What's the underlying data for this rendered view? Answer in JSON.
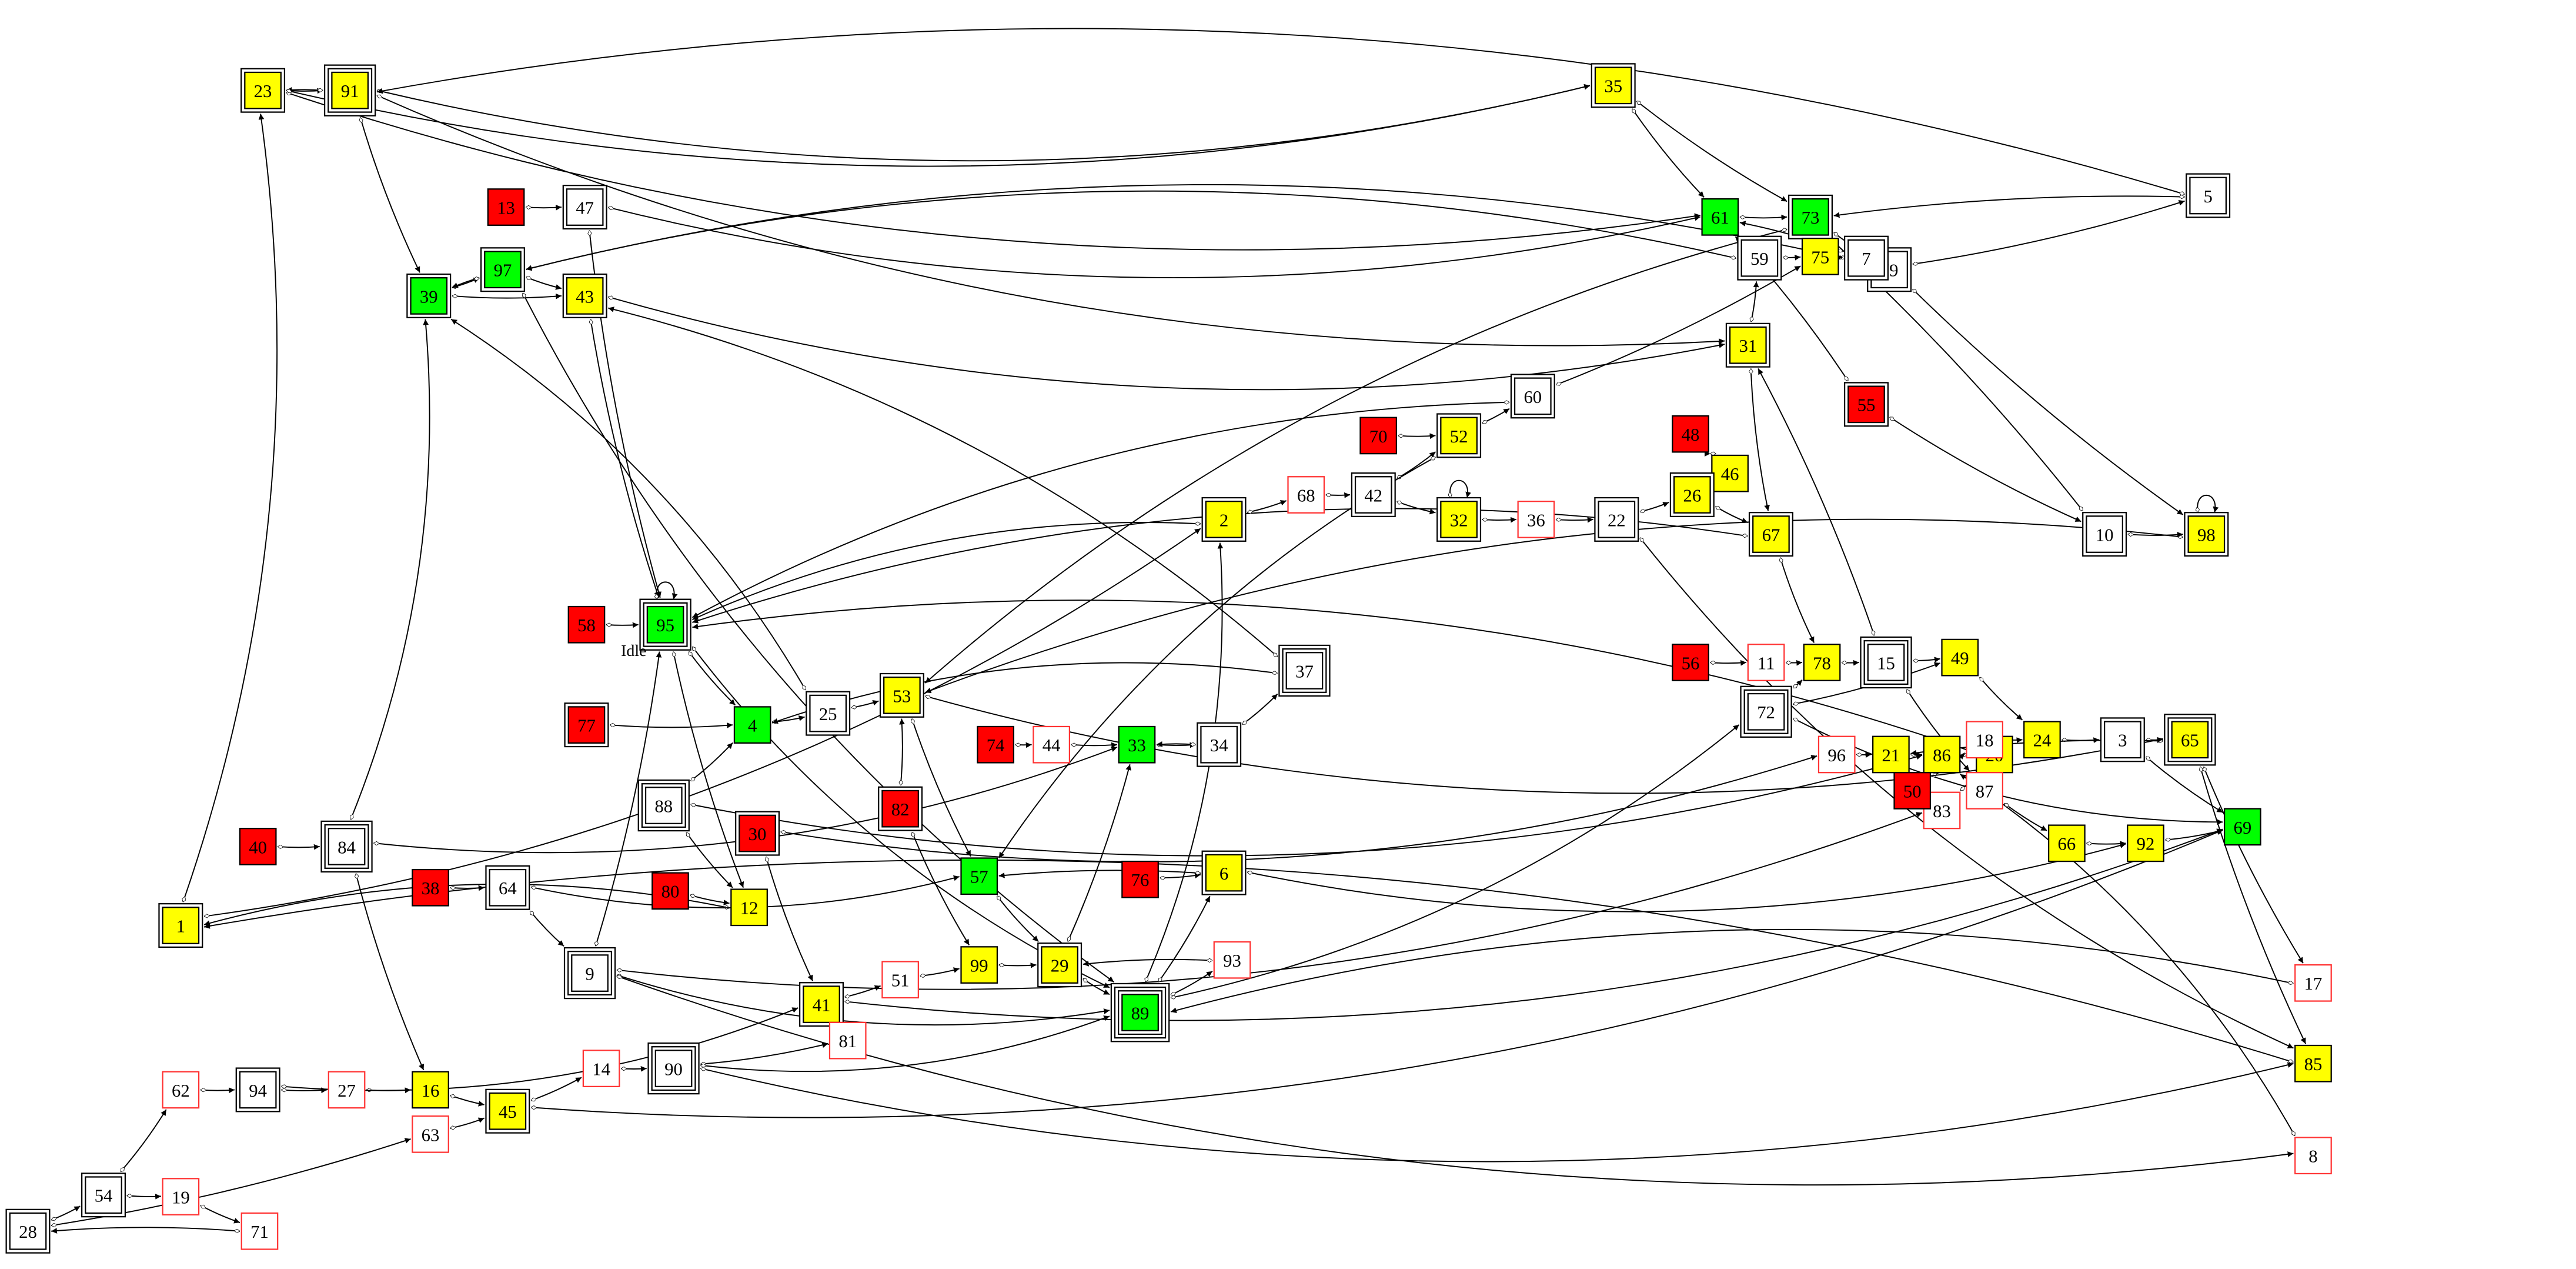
{
  "graph": {
    "colors": {
      "yellow": "#ffff00",
      "green": "#00ff00",
      "red": "#ff0000",
      "white": "#ffffff",
      "red_outline": "#ff3333"
    },
    "annotation": "Idle",
    "nodes": [
      {
        "id": "23",
        "fill": "yellow",
        "peripheries": 2
      },
      {
        "id": "91",
        "fill": "yellow",
        "peripheries": 3
      },
      {
        "id": "35",
        "fill": "yellow",
        "peripheries": 2
      },
      {
        "id": "13",
        "fill": "red",
        "peripheries": 1
      },
      {
        "id": "47",
        "fill": "white",
        "peripheries": 2
      },
      {
        "id": "61",
        "fill": "green",
        "peripheries": 1
      },
      {
        "id": "73",
        "fill": "green",
        "peripheries": 2
      },
      {
        "id": "5",
        "fill": "white",
        "peripheries": 2
      },
      {
        "id": "79",
        "fill": "white",
        "peripheries": 2
      },
      {
        "id": "59",
        "fill": "white",
        "peripheries": 2
      },
      {
        "id": "75",
        "fill": "yellow",
        "peripheries": 1
      },
      {
        "id": "7",
        "fill": "white",
        "peripheries": 2
      },
      {
        "id": "39",
        "fill": "green",
        "peripheries": 2
      },
      {
        "id": "97",
        "fill": "green",
        "peripheries": 2
      },
      {
        "id": "43",
        "fill": "yellow",
        "peripheries": 2
      },
      {
        "id": "31",
        "fill": "yellow",
        "peripheries": 2
      },
      {
        "id": "55",
        "fill": "red",
        "peripheries": 2
      },
      {
        "id": "60",
        "fill": "white",
        "peripheries": 2
      },
      {
        "id": "70",
        "fill": "red",
        "peripheries": 1
      },
      {
        "id": "52",
        "fill": "yellow",
        "peripheries": 2
      },
      {
        "id": "48",
        "fill": "red",
        "peripheries": 1
      },
      {
        "id": "46",
        "fill": "yellow",
        "peripheries": 1
      },
      {
        "id": "68",
        "fill": "white",
        "peripheries": 1,
        "outline": "red"
      },
      {
        "id": "42",
        "fill": "white",
        "peripheries": 2
      },
      {
        "id": "32",
        "fill": "yellow",
        "peripheries": 2
      },
      {
        "id": "36",
        "fill": "white",
        "peripheries": 1,
        "outline": "red"
      },
      {
        "id": "22",
        "fill": "white",
        "peripheries": 2
      },
      {
        "id": "26",
        "fill": "yellow",
        "peripheries": 2
      },
      {
        "id": "67",
        "fill": "yellow",
        "peripheries": 2
      },
      {
        "id": "10",
        "fill": "white",
        "peripheries": 2
      },
      {
        "id": "98",
        "fill": "yellow",
        "peripheries": 2
      },
      {
        "id": "2",
        "fill": "yellow",
        "peripheries": 2
      },
      {
        "id": "58",
        "fill": "red",
        "peripheries": 1
      },
      {
        "id": "95",
        "fill": "green",
        "peripheries": 3
      },
      {
        "id": "96",
        "fill": "white",
        "peripheries": 1,
        "outline": "red"
      },
      {
        "id": "21",
        "fill": "yellow",
        "peripheries": 1
      },
      {
        "id": "86",
        "fill": "yellow",
        "peripheries": 1
      },
      {
        "id": "20",
        "fill": "yellow",
        "peripheries": 1
      },
      {
        "id": "83",
        "fill": "white",
        "peripheries": 1,
        "outline": "red"
      },
      {
        "id": "53",
        "fill": "yellow",
        "peripheries": 2
      },
      {
        "id": "37",
        "fill": "white",
        "peripheries": 3
      },
      {
        "id": "11",
        "fill": "white",
        "peripheries": 1,
        "outline": "red"
      },
      {
        "id": "78",
        "fill": "yellow",
        "peripheries": 1
      },
      {
        "id": "15",
        "fill": "white",
        "peripheries": 3
      },
      {
        "id": "49",
        "fill": "yellow",
        "peripheries": 1
      },
      {
        "id": "56",
        "fill": "red",
        "peripheries": 1
      },
      {
        "id": "72",
        "fill": "white",
        "peripheries": 3
      },
      {
        "id": "18",
        "fill": "white",
        "peripheries": 1,
        "outline": "red"
      },
      {
        "id": "24",
        "fill": "yellow",
        "peripheries": 1
      },
      {
        "id": "3",
        "fill": "white",
        "peripheries": 2
      },
      {
        "id": "65",
        "fill": "yellow",
        "peripheries": 3
      },
      {
        "id": "87",
        "fill": "white",
        "peripheries": 1,
        "outline": "red"
      },
      {
        "id": "50",
        "fill": "red",
        "peripheries": 1
      },
      {
        "id": "77",
        "fill": "red",
        "peripheries": 2
      },
      {
        "id": "4",
        "fill": "green",
        "peripheries": 1
      },
      {
        "id": "25",
        "fill": "white",
        "peripheries": 2
      },
      {
        "id": "74",
        "fill": "red",
        "peripheries": 1
      },
      {
        "id": "44",
        "fill": "white",
        "peripheries": 1,
        "outline": "red"
      },
      {
        "id": "33",
        "fill": "green",
        "peripheries": 1
      },
      {
        "id": "34",
        "fill": "white",
        "peripheries": 2
      },
      {
        "id": "69",
        "fill": "green",
        "peripheries": 1
      },
      {
        "id": "88",
        "fill": "white",
        "peripheries": 3
      },
      {
        "id": "40",
        "fill": "red",
        "peripheries": 1
      },
      {
        "id": "84",
        "fill": "white",
        "peripheries": 3
      },
      {
        "id": "30",
        "fill": "red",
        "peripheries": 2
      },
      {
        "id": "82",
        "fill": "red",
        "peripheries": 2
      },
      {
        "id": "66",
        "fill": "yellow",
        "peripheries": 1
      },
      {
        "id": "92",
        "fill": "yellow",
        "peripheries": 1
      },
      {
        "id": "76",
        "fill": "red",
        "peripheries": 1
      },
      {
        "id": "6",
        "fill": "yellow",
        "peripheries": 2
      },
      {
        "id": "57",
        "fill": "green",
        "peripheries": 1
      },
      {
        "id": "38",
        "fill": "red",
        "peripheries": 1
      },
      {
        "id": "64",
        "fill": "white",
        "peripheries": 2
      },
      {
        "id": "80",
        "fill": "red",
        "peripheries": 1
      },
      {
        "id": "12",
        "fill": "yellow",
        "peripheries": 1
      },
      {
        "id": "1",
        "fill": "yellow",
        "peripheries": 2
      },
      {
        "id": "99",
        "fill": "yellow",
        "peripheries": 1
      },
      {
        "id": "29",
        "fill": "yellow",
        "peripheries": 2
      },
      {
        "id": "93",
        "fill": "white",
        "peripheries": 1,
        "outline": "red"
      },
      {
        "id": "9",
        "fill": "white",
        "peripheries": 3
      },
      {
        "id": "89",
        "fill": "green",
        "peripheries": 4
      },
      {
        "id": "51",
        "fill": "white",
        "peripheries": 1,
        "outline": "red"
      },
      {
        "id": "41",
        "fill": "yellow",
        "peripheries": 2
      },
      {
        "id": "17",
        "fill": "white",
        "peripheries": 1,
        "outline": "red"
      },
      {
        "id": "85",
        "fill": "yellow",
        "peripheries": 1
      },
      {
        "id": "8",
        "fill": "white",
        "peripheries": 1,
        "outline": "red"
      },
      {
        "id": "62",
        "fill": "white",
        "peripheries": 1,
        "outline": "red"
      },
      {
        "id": "94",
        "fill": "white",
        "peripheries": 2
      },
      {
        "id": "27",
        "fill": "white",
        "peripheries": 1,
        "outline": "red"
      },
      {
        "id": "16",
        "fill": "yellow",
        "peripheries": 1
      },
      {
        "id": "14",
        "fill": "white",
        "peripheries": 1,
        "outline": "red"
      },
      {
        "id": "90",
        "fill": "white",
        "peripheries": 3
      },
      {
        "id": "81",
        "fill": "white",
        "peripheries": 1,
        "outline": "red"
      },
      {
        "id": "45",
        "fill": "yellow",
        "peripheries": 2
      },
      {
        "id": "63",
        "fill": "white",
        "peripheries": 1,
        "outline": "red"
      },
      {
        "id": "54",
        "fill": "white",
        "peripheries": 2
      },
      {
        "id": "19",
        "fill": "white",
        "peripheries": 1,
        "outline": "red"
      },
      {
        "id": "71",
        "fill": "white",
        "peripheries": 1,
        "outline": "red"
      },
      {
        "id": "28",
        "fill": "white",
        "peripheries": 2
      }
    ],
    "edges": [
      [
        "23",
        "91"
      ],
      [
        "91",
        "23"
      ],
      [
        "23",
        "61"
      ],
      [
        "23",
        "35"
      ],
      [
        "91",
        "35"
      ],
      [
        "5",
        "91"
      ],
      [
        "35",
        "73"
      ],
      [
        "35",
        "61"
      ],
      [
        "91",
        "31"
      ],
      [
        "13",
        "47"
      ],
      [
        "47",
        "61"
      ],
      [
        "47",
        "95"
      ],
      [
        "91",
        "39"
      ],
      [
        "7",
        "97"
      ],
      [
        "59",
        "97"
      ],
      [
        "39",
        "97"
      ],
      [
        "97",
        "39"
      ],
      [
        "39",
        "43"
      ],
      [
        "97",
        "43"
      ],
      [
        "43",
        "31"
      ],
      [
        "37",
        "43"
      ],
      [
        "43",
        "95"
      ],
      [
        "60",
        "95"
      ],
      [
        "2",
        "95"
      ],
      [
        "67",
        "95"
      ],
      [
        "98",
        "53"
      ],
      [
        "20",
        "95"
      ],
      [
        "58",
        "95"
      ],
      [
        "95",
        "95"
      ],
      [
        "1",
        "2"
      ],
      [
        "2",
        "68"
      ],
      [
        "68",
        "42"
      ],
      [
        "42",
        "52"
      ],
      [
        "42",
        "32"
      ],
      [
        "70",
        "52"
      ],
      [
        "52",
        "60"
      ],
      [
        "60",
        "75"
      ],
      [
        "32",
        "32"
      ],
      [
        "32",
        "36"
      ],
      [
        "36",
        "22"
      ],
      [
        "22",
        "26"
      ],
      [
        "26",
        "67"
      ],
      [
        "46",
        "26"
      ],
      [
        "26",
        "46"
      ],
      [
        "48",
        "46"
      ],
      [
        "31",
        "67"
      ],
      [
        "31",
        "59"
      ],
      [
        "59",
        "75"
      ],
      [
        "75",
        "7"
      ],
      [
        "7",
        "61"
      ],
      [
        "61",
        "73"
      ],
      [
        "73",
        "79"
      ],
      [
        "79",
        "5"
      ],
      [
        "5",
        "73"
      ],
      [
        "55",
        "61"
      ],
      [
        "55",
        "10"
      ],
      [
        "10",
        "73"
      ],
      [
        "10",
        "98"
      ],
      [
        "98",
        "98"
      ],
      [
        "79",
        "98"
      ],
      [
        "73",
        "53"
      ],
      [
        "67",
        "78"
      ],
      [
        "22",
        "85"
      ],
      [
        "52",
        "57"
      ],
      [
        "96",
        "21"
      ],
      [
        "21",
        "86"
      ],
      [
        "86",
        "20"
      ],
      [
        "83",
        "20"
      ],
      [
        "8",
        "86"
      ],
      [
        "9",
        "83"
      ],
      [
        "15",
        "31"
      ],
      [
        "72",
        "78"
      ],
      [
        "72",
        "49"
      ],
      [
        "72",
        "69"
      ],
      [
        "56",
        "11"
      ],
      [
        "11",
        "78"
      ],
      [
        "78",
        "15"
      ],
      [
        "15",
        "49"
      ],
      [
        "15",
        "87"
      ],
      [
        "49",
        "24"
      ],
      [
        "18",
        "24"
      ],
      [
        "50",
        "18"
      ],
      [
        "24",
        "3"
      ],
      [
        "3",
        "65"
      ],
      [
        "3",
        "69"
      ],
      [
        "65",
        "21"
      ],
      [
        "65",
        "85"
      ],
      [
        "65",
        "17"
      ],
      [
        "87",
        "66"
      ],
      [
        "66",
        "92"
      ],
      [
        "92",
        "69"
      ],
      [
        "53",
        "65"
      ],
      [
        "4",
        "25"
      ],
      [
        "25",
        "53"
      ],
      [
        "25",
        "39"
      ],
      [
        "77",
        "4"
      ],
      [
        "88",
        "4"
      ],
      [
        "30",
        "96"
      ],
      [
        "30",
        "41"
      ],
      [
        "84",
        "33"
      ],
      [
        "84",
        "39"
      ],
      [
        "84",
        "16"
      ],
      [
        "40",
        "84"
      ],
      [
        "74",
        "44"
      ],
      [
        "44",
        "33"
      ],
      [
        "33",
        "34"
      ],
      [
        "34",
        "33"
      ],
      [
        "34",
        "37"
      ],
      [
        "37",
        "4"
      ],
      [
        "53",
        "57"
      ],
      [
        "82",
        "99"
      ],
      [
        "82",
        "53"
      ],
      [
        "57",
        "29"
      ],
      [
        "29",
        "33"
      ],
      [
        "29",
        "89"
      ],
      [
        "93",
        "29"
      ],
      [
        "99",
        "29"
      ],
      [
        "51",
        "99"
      ],
      [
        "41",
        "51"
      ],
      [
        "41",
        "69"
      ],
      [
        "89",
        "2"
      ],
      [
        "89",
        "6"
      ],
      [
        "89",
        "93"
      ],
      [
        "89",
        "72"
      ],
      [
        "76",
        "6"
      ],
      [
        "6",
        "57"
      ],
      [
        "6",
        "92"
      ],
      [
        "17",
        "89"
      ],
      [
        "12",
        "1"
      ],
      [
        "88",
        "12"
      ],
      [
        "80",
        "12"
      ],
      [
        "95",
        "12"
      ],
      [
        "95",
        "4"
      ],
      [
        "64",
        "57"
      ],
      [
        "64",
        "9"
      ],
      [
        "38",
        "64"
      ],
      [
        "9",
        "89"
      ],
      [
        "9",
        "95"
      ],
      [
        "9",
        "8"
      ],
      [
        "1",
        "23"
      ],
      [
        "85",
        "1"
      ],
      [
        "62",
        "94"
      ],
      [
        "94",
        "27"
      ],
      [
        "27",
        "16"
      ],
      [
        "16",
        "45"
      ],
      [
        "63",
        "45"
      ],
      [
        "45",
        "14"
      ],
      [
        "14",
        "90"
      ],
      [
        "90",
        "81"
      ],
      [
        "81",
        "41"
      ],
      [
        "90",
        "89"
      ],
      [
        "90",
        "85"
      ],
      [
        "45",
        "69"
      ],
      [
        "94",
        "41"
      ],
      [
        "54",
        "62"
      ],
      [
        "54",
        "19"
      ],
      [
        "19",
        "71"
      ],
      [
        "71",
        "28"
      ],
      [
        "28",
        "54"
      ],
      [
        "28",
        "63"
      ],
      [
        "95",
        "89"
      ],
      [
        "97",
        "89"
      ],
      [
        "88",
        "86"
      ]
    ]
  }
}
